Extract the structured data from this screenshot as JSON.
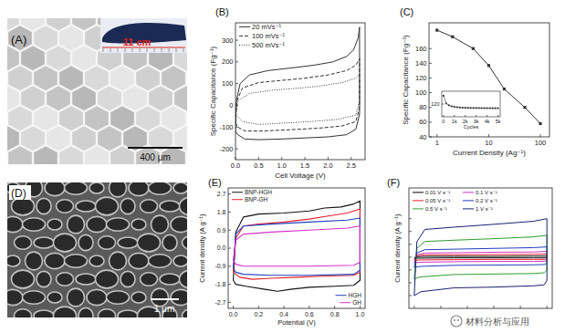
{
  "images": [
    {
      "label": "(A)",
      "scale_bar": "400 μm",
      "inset_text": "11 cm"
    },
    {
      "label": "(D)",
      "scale_bar": "1 μm"
    }
  ],
  "chart_data": [
    {
      "type": "line",
      "title": "(B)",
      "x_label": "Cell Voltage (V)",
      "y_label": "Specific Capacitance (Fg⁻¹)",
      "xlim": [
        0,
        2.8
      ],
      "ylim": [
        -250,
        380
      ],
      "xticks": [
        {
          "value": 0,
          "label": "0.0"
        },
        0.5,
        {
          "value": 1,
          "label": "1.0"
        },
        1.5,
        {
          "value": 2,
          "label": "2.0"
        },
        2.5
      ],
      "yticks": [
        -200,
        -100,
        0,
        100,
        200,
        300
      ],
      "legend": "top left",
      "series": [
        {
          "name": "20  mVs⁻¹",
          "color": "#333333",
          "line_style": "solid",
          "x": [
            0,
            0.02,
            0.1,
            0.3,
            0.7,
            1.2,
            1.7,
            2.1,
            2.4,
            2.55,
            2.65,
            2.68,
            2.68,
            2.6,
            2.4,
            2.0,
            1.5,
            1.0,
            0.5,
            0.2,
            0.05,
            0
          ],
          "values": [
            -120,
            20,
            100,
            140,
            160,
            172,
            185,
            200,
            225,
            255,
            310,
            360,
            -40,
            -110,
            -135,
            -145,
            -150,
            -155,
            -158,
            -155,
            -135,
            -120
          ]
        },
        {
          "name": "100 mVs⁻¹",
          "color": "#333333",
          "line_style": "dashed",
          "x": [
            0,
            0.03,
            0.15,
            0.5,
            1.0,
            1.5,
            2.0,
            2.4,
            2.6,
            2.68,
            2.68,
            2.6,
            2.3,
            1.8,
            1.2,
            0.6,
            0.2,
            0.05,
            0
          ],
          "values": [
            -80,
            20,
            80,
            105,
            115,
            125,
            140,
            160,
            185,
            215,
            -10,
            -75,
            -95,
            -105,
            -112,
            -118,
            -118,
            -100,
            -80
          ]
        },
        {
          "name": "500 mVs⁻¹",
          "color": "#333333",
          "line_style": "dotted",
          "x": [
            0,
            0.05,
            0.3,
            0.8,
            1.3,
            1.8,
            2.3,
            2.6,
            2.68,
            2.68,
            2.6,
            2.2,
            1.6,
            1.0,
            0.5,
            0.15,
            0
          ],
          "values": [
            -40,
            20,
            55,
            70,
            78,
            88,
            105,
            125,
            145,
            20,
            -45,
            -65,
            -75,
            -82,
            -88,
            -75,
            -40
          ]
        }
      ]
    },
    {
      "type": "line",
      "title": "(C)",
      "x_label": "Current Density (Ag⁻¹)",
      "y_label": "Specific Capacitance (Fg⁻¹)",
      "log": "x",
      "xlim": [
        0.7,
        150
      ],
      "ylim": [
        40,
        195
      ],
      "xticks": [
        1,
        10,
        100
      ],
      "yticks": [
        40,
        60,
        80,
        100,
        120,
        140,
        160
      ],
      "series": [
        {
          "color": "#333333",
          "marker": "square",
          "line_style": "solid",
          "x": [
            1,
            2,
            5,
            10,
            20,
            50,
            100
          ],
          "values": [
            185,
            176,
            160,
            137,
            105,
            80,
            58
          ]
        }
      ]
    },
    {
      "type": "line",
      "x_label": "Cycles",
      "xlim": [
        -150,
        5200
      ],
      "ylim": [
        100,
        140
      ],
      "xticks": [
        0,
        {
          "value": 1000,
          "label": "1k"
        },
        {
          "value": 2000,
          "label": "2k"
        },
        {
          "value": 3000,
          "label": "3k"
        },
        {
          "value": 4000,
          "label": "4k"
        },
        {
          "value": 5000,
          "label": "5k"
        }
      ],
      "yticks": [
        120
      ],
      "series": [
        {
          "color": "#333333",
          "marker": "square",
          "line_style": "solid",
          "x": [
            0,
            250,
            500,
            750,
            1000,
            1250,
            1500,
            1750,
            2000,
            2250,
            2500,
            2750,
            3000,
            3250,
            3500,
            3750,
            4000,
            4250,
            4500,
            4750,
            5000
          ],
          "values": [
            133,
            121,
            118,
            116.5,
            115.5,
            115,
            114.5,
            114.2,
            114,
            114,
            113.8,
            113.8,
            113.7,
            113.7,
            113.6,
            113.6,
            113.5,
            113.5,
            113.5,
            113.4,
            113.4
          ]
        }
      ]
    },
    {
      "type": "line",
      "title": "(E)",
      "x_label": "Potential (V)",
      "y_label": "Current density (A g⁻¹)",
      "xlim": [
        -0.04,
        1.04
      ],
      "ylim": [
        -3,
        3
      ],
      "xticks": [
        {
          "value": 0,
          "label": "0.0"
        },
        0.2,
        0.4,
        0.6,
        0.8,
        {
          "value": 1,
          "label": "1.0"
        }
      ],
      "yticks": [
        -2.7,
        -1.8,
        -0.9,
        {
          "value": 0,
          "label": "0.0"
        },
        0.9,
        1.8,
        2.7
      ],
      "legend": "split",
      "series": [
        {
          "name": "BNP-HGH",
          "color": "#111111",
          "line_style": "solid",
          "x": [
            0,
            0.02,
            0.08,
            0.2,
            0.4,
            0.6,
            0.72,
            0.85,
            0.95,
            1.0,
            1.0,
            0.95,
            0.8,
            0.6,
            0.45,
            0.35,
            0.25,
            0.1,
            0.02,
            0
          ],
          "values": [
            -1.6,
            0.8,
            1.55,
            1.7,
            1.75,
            1.85,
            2.0,
            2.05,
            2.2,
            2.35,
            -1.6,
            -1.85,
            -1.9,
            -1.95,
            -2.05,
            -2.15,
            -2.05,
            -1.9,
            -1.8,
            -1.6
          ]
        },
        {
          "name": "BNP-GH",
          "color": "#e8232a",
          "line_style": "solid",
          "x": [
            0,
            0.02,
            0.08,
            0.2,
            0.4,
            0.6,
            0.75,
            0.9,
            1.0,
            1.0,
            0.95,
            0.7,
            0.5,
            0.3,
            0.15,
            0.05,
            0
          ],
          "values": [
            -1.2,
            0.5,
            1.1,
            1.2,
            1.3,
            1.45,
            1.6,
            1.75,
            1.95,
            -1.2,
            -1.35,
            -1.4,
            -1.45,
            -1.5,
            -1.55,
            -1.45,
            -1.2
          ]
        },
        {
          "name": "HGH",
          "color": "#1f3fbf",
          "line_style": "solid",
          "x": [
            0,
            0.02,
            0.08,
            0.3,
            0.6,
            0.9,
            1.0,
            1.0,
            0.95,
            0.6,
            0.3,
            0.08,
            0.02,
            0
          ],
          "values": [
            -1.0,
            0.7,
            1.1,
            1.2,
            1.3,
            1.4,
            1.5,
            -1.1,
            -1.3,
            -1.35,
            -1.35,
            -1.3,
            -1.2,
            -1.0
          ]
        },
        {
          "name": "GH",
          "color": "#d62fc8",
          "line_style": "solid",
          "x": [
            0,
            0.02,
            0.08,
            0.3,
            0.6,
            0.9,
            1.0,
            1.0,
            0.95,
            0.6,
            0.3,
            0.08,
            0.02,
            0
          ],
          "values": [
            -0.6,
            0.4,
            0.7,
            0.8,
            0.9,
            1.0,
            1.1,
            -0.7,
            -0.85,
            -0.9,
            -0.9,
            -0.9,
            -0.8,
            -0.6
          ]
        }
      ]
    },
    {
      "type": "line",
      "title": "(F)",
      "y_label": "Current density (A g⁻¹)",
      "xlim": [
        -0.04,
        1.04
      ],
      "ylim": [
        -200,
        270
      ],
      "xticks": [
        0,
        0.2,
        0.4,
        0.6,
        0.8,
        1
      ],
      "yticks": [
        -150,
        -100,
        -50,
        0,
        50,
        100,
        150
      ],
      "tick_labels": false,
      "legend": "top left",
      "series": [
        {
          "name": "0.01 V s⁻¹",
          "color": "#000000",
          "line_style": "solid",
          "x": [
            0,
            0.02,
            0.08,
            0.3,
            0.6,
            0.9,
            1.0,
            1.0,
            0.98,
            0.9,
            0.6,
            0.3,
            0.05,
            0
          ],
          "values": [
            -4,
            2,
            3,
            3,
            3,
            4,
            4,
            -2,
            -3,
            -3,
            -3,
            -3,
            -4,
            -4
          ]
        },
        {
          "name": "0.1 V s⁻¹",
          "color": "#d62fc8",
          "line_style": "solid",
          "x": [
            0,
            0.02,
            0.08,
            0.3,
            0.6,
            0.9,
            1.0,
            1.0,
            0.98,
            0.9,
            0.6,
            0.3,
            0.05,
            0
          ],
          "values": [
            -22,
            9,
            16,
            17,
            19,
            20,
            22,
            -13,
            -16,
            -17,
            -17,
            -18,
            -20,
            -22
          ]
        },
        {
          "name": "0.05 V s⁻¹",
          "color": "#e8232a",
          "line_style": "solid",
          "x": [
            0,
            0.02,
            0.08,
            0.3,
            0.6,
            0.9,
            1.0,
            1.0,
            0.98,
            0.9,
            0.6,
            0.3,
            0.05,
            0
          ],
          "values": [
            -12,
            5,
            9,
            9,
            10,
            11,
            12,
            -7,
            -9,
            -9,
            -9,
            -10,
            -11,
            -12
          ]
        },
        {
          "name": "0.2 V s⁻¹",
          "color": "#1f3fbf",
          "line_style": "solid",
          "x": [
            0,
            0.02,
            0.08,
            0.3,
            0.6,
            0.9,
            1.0,
            1.0,
            0.98,
            0.9,
            0.6,
            0.3,
            0.05,
            0
          ],
          "values": [
            -40,
            16,
            29,
            31,
            34,
            37,
            40,
            -24,
            -29,
            -30,
            -31,
            -32,
            -36,
            -40
          ]
        },
        {
          "name": "0.5 V s⁻¹",
          "color": "#2e9e2e",
          "line_style": "solid",
          "x": [
            0,
            0.02,
            0.08,
            0.3,
            0.6,
            0.9,
            1.0,
            1.0,
            0.98,
            0.9,
            0.6,
            0.3,
            0.05,
            0
          ],
          "values": [
            -85,
            34,
            61,
            66,
            72,
            79,
            85,
            -51,
            -61,
            -64,
            -66,
            -68,
            -77,
            -85
          ]
        },
        {
          "name": "1 V s⁻¹",
          "color": "#1b1f6e",
          "line_style": "solid",
          "x": [
            0,
            0.02,
            0.08,
            0.3,
            0.6,
            0.9,
            1.0,
            1.0,
            0.98,
            0.9,
            0.6,
            0.3,
            0.05,
            0
          ],
          "values": [
            -150,
            60,
            108,
            117,
            128,
            140,
            150,
            -90,
            -108,
            -112,
            -117,
            -120,
            -135,
            -150
          ]
        }
      ]
    }
  ],
  "watermark": "材料分析与应用"
}
